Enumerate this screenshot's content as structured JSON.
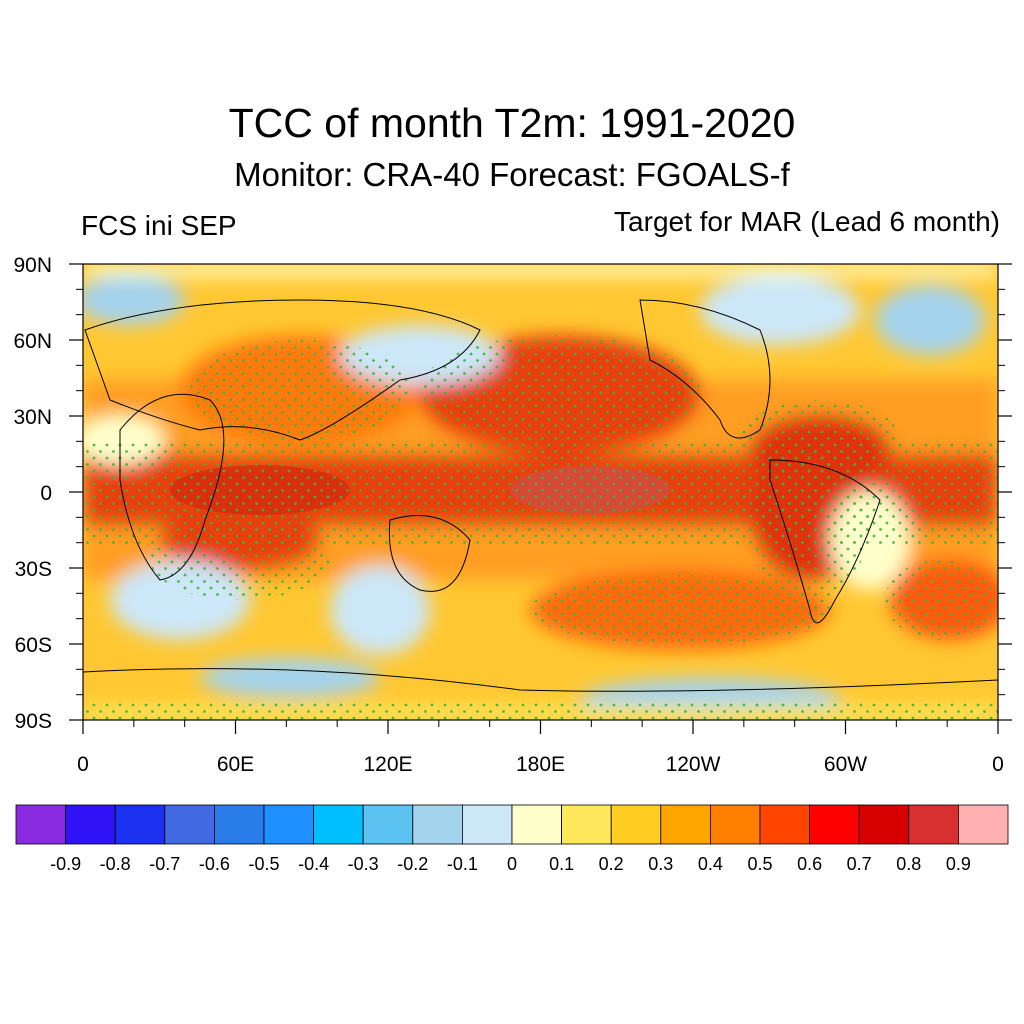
{
  "figure": {
    "title": "TCC of month T2m: 1991-2020",
    "subtitle": "Monitor: CRA-40   Forecast: FGOALS-f",
    "left_label": "FCS ini SEP",
    "right_label": "Target for MAR (Lead 6 month)"
  },
  "map": {
    "projection": "cylindrical equidistant",
    "lon_range": [
      0,
      360
    ],
    "lat_range": [
      -90,
      90
    ],
    "lat_ticks": [
      {
        "value": 90,
        "label": "90N"
      },
      {
        "value": 60,
        "label": "60N"
      },
      {
        "value": 30,
        "label": "30N"
      },
      {
        "value": 0,
        "label": "0"
      },
      {
        "value": -30,
        "label": "30S"
      },
      {
        "value": -60,
        "label": "60S"
      },
      {
        "value": -90,
        "label": "90S"
      }
    ],
    "lon_ticks": [
      {
        "value": 0,
        "label": "0"
      },
      {
        "value": 60,
        "label": "60E"
      },
      {
        "value": 120,
        "label": "120E"
      },
      {
        "value": 180,
        "label": "180E"
      },
      {
        "value": 240,
        "label": "120W"
      },
      {
        "value": 300,
        "label": "60W"
      },
      {
        "value": 360,
        "label": "0"
      }
    ],
    "stippling": "green dots mark significant correlation",
    "stipple_color": "#3cb43c"
  },
  "colorbar": {
    "colors": [
      "#8a2be2",
      "#2f12f5",
      "#1c30f0",
      "#4169e1",
      "#2a7de8",
      "#1e90ff",
      "#00bfff",
      "#5bc2f2",
      "#a4d3ee",
      "#cce7f8",
      "#ffffcc",
      "#ffe85c",
      "#ffcc22",
      "#ffa500",
      "#ff7f00",
      "#ff4500",
      "#ff0000",
      "#d70000",
      "#d83030",
      "#ffb0b0"
    ],
    "labels": [
      "-0.9",
      "-0.8",
      "-0.7",
      "-0.6",
      "-0.5",
      "-0.4",
      "-0.3",
      "-0.2",
      "-0.1",
      "0",
      "0.1",
      "0.2",
      "0.3",
      "0.4",
      "0.5",
      "0.6",
      "0.7",
      "0.8",
      "0.9"
    ]
  }
}
